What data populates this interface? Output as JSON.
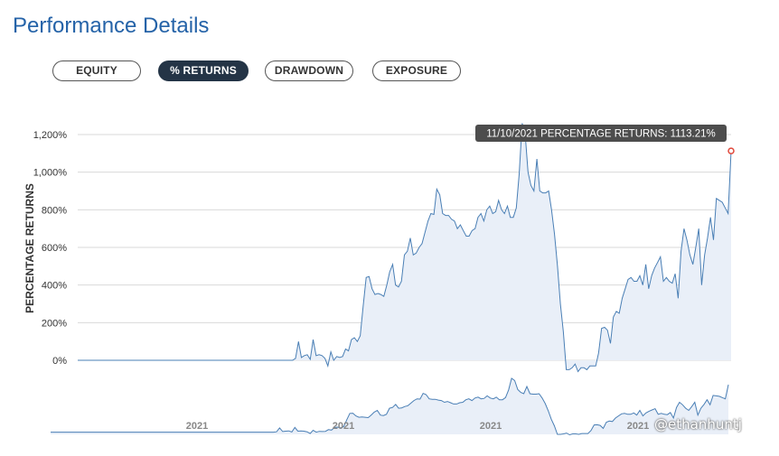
{
  "page": {
    "title": "Performance Details"
  },
  "tabs": [
    {
      "label": "EQUITY",
      "active": false
    },
    {
      "label": "% RETURNS",
      "active": true
    },
    {
      "label": "DRAWDOWN",
      "active": false
    },
    {
      "label": "EXPOSURE",
      "active": false
    }
  ],
  "watermark": "@ethanhuntj",
  "chart_data": {
    "type": "area",
    "ylabel": "PERCENTAGE RETURNS",
    "yticks": [
      "0%",
      "200%",
      "400%",
      "600%",
      "800%",
      "1,000%",
      "1,200%"
    ],
    "ytick_values": [
      0,
      200,
      400,
      600,
      800,
      1000,
      1200
    ],
    "ylim": [
      0,
      1200
    ],
    "grid": true,
    "tooltip": "11/10/2021 PERCENTAGE RETURNS: 1113.21%",
    "navigator_ticks": [
      "2021",
      "2021",
      "2021",
      "2021"
    ],
    "colors": {
      "line": "#4a7fb5",
      "fill": "#e9eff8",
      "grid": "#d9d9d9",
      "marker": "#e0473a",
      "tooltip_bg": "#4d4d4d"
    },
    "series": [
      {
        "values": [
          0,
          0,
          0,
          0,
          0,
          0,
          0,
          0,
          0,
          0,
          0,
          0,
          0,
          0,
          0,
          0,
          0,
          0,
          0,
          0,
          0,
          0,
          0,
          0,
          0,
          0,
          0,
          0,
          0,
          0,
          0,
          0,
          0,
          0,
          0,
          0,
          0,
          0,
          0,
          0,
          0,
          0,
          0,
          0,
          0,
          0,
          0,
          0,
          0,
          0,
          0,
          0,
          0,
          0,
          0,
          0,
          0,
          0,
          0,
          0,
          0,
          0,
          0,
          0,
          0,
          0,
          0,
          0,
          0,
          0,
          0,
          0,
          0,
          0,
          10,
          100,
          15,
          25,
          30,
          5,
          110,
          25,
          30,
          25,
          10,
          -30,
          45,
          0,
          20,
          15,
          20,
          60,
          50,
          110,
          120,
          100,
          130,
          290,
          440,
          445,
          380,
          350,
          355,
          350,
          340,
          400,
          470,
          510,
          400,
          390,
          420,
          560,
          580,
          650,
          560,
          570,
          600,
          620,
          680,
          740,
          780,
          775,
          910,
          880,
          780,
          770,
          770,
          750,
          740,
          700,
          720,
          690,
          660,
          660,
          690,
          700,
          760,
          780,
          740,
          800,
          820,
          780,
          790,
          850,
          800,
          780,
          820,
          760,
          760,
          810,
          990,
          1260,
          1210,
          1000,
          930,
          900,
          1070,
          900,
          890,
          890,
          900,
          800,
          670,
          500,
          300,
          150,
          -50,
          -50,
          -40,
          -20,
          -60,
          -40,
          -40,
          -50,
          -30,
          -30,
          -30,
          40,
          170,
          175,
          160,
          90,
          230,
          260,
          250,
          330,
          380,
          430,
          440,
          420,
          420,
          450,
          400,
          510,
          380,
          450,
          490,
          520,
          550,
          420,
          440,
          420,
          410,
          460,
          330,
          580,
          700,
          640,
          560,
          510,
          600,
          700,
          400,
          560,
          650,
          760,
          640,
          860,
          850,
          840,
          810,
          780,
          1113
        ]
      }
    ]
  }
}
